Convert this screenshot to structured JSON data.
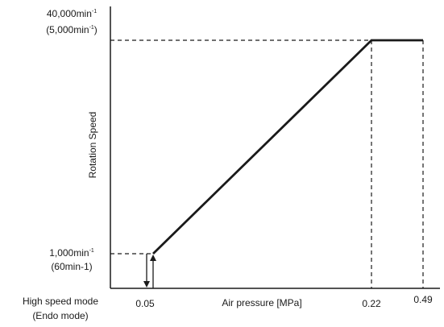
{
  "chart_data": {
    "type": "line",
    "title": "",
    "xlabel": "Air pressure [MPa]",
    "ylabel": "Rotation Speed",
    "series": [
      {
        "x": [
          0.05,
          0.22,
          0.49
        ],
        "y": [
          1000,
          40000,
          40000
        ]
      }
    ],
    "x_ticks": [
      "0.05",
      "0.22",
      "0.49"
    ],
    "y_ticks": {
      "top": {
        "line1_value": "40,000min",
        "line1_exp": "-1",
        "line2_value": "(5,000min",
        "line2_exp": "-1",
        "line2_close": ")"
      },
      "low": {
        "line1_value": "1,000min",
        "line1_exp": "-1",
        "line2": "(60min-1)"
      }
    },
    "mode_label": [
      "High speed mode",
      "(Endo mode)"
    ],
    "reference_lines": "dashed",
    "colors": {
      "line": "#1a1a1a",
      "axis": "#1a1a1a"
    }
  }
}
